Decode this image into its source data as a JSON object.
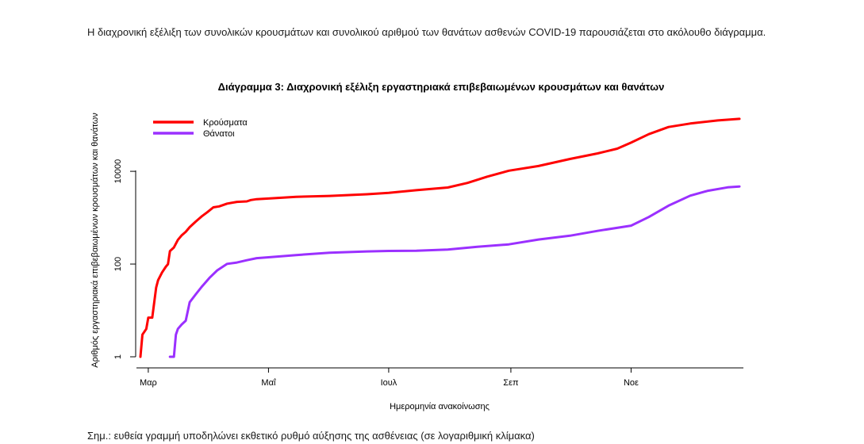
{
  "document": {
    "intro_text": "Η διαχρονική εξέλιξη των συνολικών κρουσμάτων και συνολικού αριθμού των θανάτων ασθενών COVID-19 παρουσιάζεται στο ακόλουθο διάγραμμα.",
    "footnote": "Σημ.: ευθεία γραμμή υποδηλώνει εκθετικό ρυθμό αύξησης της ασθένειας (σε λογαριθμική κλίμακα)"
  },
  "chart_data": {
    "type": "line",
    "title": "Διάγραμμα 3: Διαχρονική εξέλιξη εργαστηριακά επιβεβαιωμένων κρουσμάτων και θανάτων",
    "xlabel": "Ημερομηνία ανακοίνωσης",
    "ylabel": "Αριθμός εργαστηριακά επιβεβαιωμένων κρουσμάτων και θανάτων",
    "y_scale": "log",
    "ylim": [
      1,
      200000
    ],
    "xlim": [
      "2020-02-24",
      "2020-12-28"
    ],
    "x_ticks": [
      {
        "date": "2020-03-01",
        "label": "Μαρ"
      },
      {
        "date": "2020-05-01",
        "label": "Μαΐ"
      },
      {
        "date": "2020-07-01",
        "label": "Ιουλ"
      },
      {
        "date": "2020-09-01",
        "label": "Σεπ"
      },
      {
        "date": "2020-11-01",
        "label": "Νοε"
      }
    ],
    "y_ticks": [
      {
        "value": 1,
        "label": "1"
      },
      {
        "value": 100,
        "label": "100"
      },
      {
        "value": 10000,
        "label": "10000"
      }
    ],
    "legend_position": "top-left",
    "grid": false,
    "series": [
      {
        "name": "Κρούσματα",
        "color": "#ff0000",
        "points": [
          [
            "2020-02-26",
            1
          ],
          [
            "2020-02-27",
            3
          ],
          [
            "2020-02-29",
            4
          ],
          [
            "2020-03-01",
            7
          ],
          [
            "2020-03-03",
            7
          ],
          [
            "2020-03-05",
            31
          ],
          [
            "2020-03-06",
            45
          ],
          [
            "2020-03-08",
            66
          ],
          [
            "2020-03-10",
            89
          ],
          [
            "2020-03-11",
            99
          ],
          [
            "2020-03-12",
            190
          ],
          [
            "2020-03-14",
            228
          ],
          [
            "2020-03-16",
            331
          ],
          [
            "2020-03-18",
            418
          ],
          [
            "2020-03-20",
            495
          ],
          [
            "2020-03-22",
            624
          ],
          [
            "2020-03-25",
            821
          ],
          [
            "2020-03-28",
            1061
          ],
          [
            "2020-03-31",
            1314
          ],
          [
            "2020-04-03",
            1673
          ],
          [
            "2020-04-06",
            1755
          ],
          [
            "2020-04-10",
            2011
          ],
          [
            "2020-04-15",
            2192
          ],
          [
            "2020-04-20",
            2245
          ],
          [
            "2020-04-22",
            2401
          ],
          [
            "2020-04-25",
            2506
          ],
          [
            "2020-05-01",
            2591
          ],
          [
            "2020-05-15",
            2819
          ],
          [
            "2020-06-01",
            2952
          ],
          [
            "2020-06-20",
            3203
          ],
          [
            "2020-07-01",
            3432
          ],
          [
            "2020-07-15",
            3910
          ],
          [
            "2020-07-31",
            4477
          ],
          [
            "2020-08-10",
            5623
          ],
          [
            "2020-08-20",
            7684
          ],
          [
            "2020-08-31",
            10317
          ],
          [
            "2020-09-15",
            13031
          ],
          [
            "2020-10-01",
            18475
          ],
          [
            "2020-10-15",
            24287
          ],
          [
            "2020-10-25",
            30782
          ],
          [
            "2020-11-01",
            41527
          ],
          [
            "2020-11-10",
            63321
          ],
          [
            "2020-11-20",
            90121
          ],
          [
            "2020-12-01",
            107470
          ],
          [
            "2020-12-15",
            125212
          ],
          [
            "2020-12-26",
            135456
          ]
        ]
      },
      {
        "name": "Θάνατοι",
        "color": "#9b30ff",
        "points": [
          [
            "2020-03-12",
            1
          ],
          [
            "2020-03-13",
            1
          ],
          [
            "2020-03-14",
            1
          ],
          [
            "2020-03-15",
            3
          ],
          [
            "2020-03-16",
            4
          ],
          [
            "2020-03-18",
            5
          ],
          [
            "2020-03-20",
            6
          ],
          [
            "2020-03-22",
            15
          ],
          [
            "2020-03-25",
            22
          ],
          [
            "2020-03-28",
            32
          ],
          [
            "2020-04-01",
            50
          ],
          [
            "2020-04-05",
            73
          ],
          [
            "2020-04-10",
            101
          ],
          [
            "2020-04-15",
            108
          ],
          [
            "2020-04-20",
            121
          ],
          [
            "2020-04-25",
            134
          ],
          [
            "2020-05-01",
            140
          ],
          [
            "2020-05-15",
            156
          ],
          [
            "2020-06-01",
            175
          ],
          [
            "2020-06-20",
            187
          ],
          [
            "2020-07-01",
            192
          ],
          [
            "2020-07-15",
            194
          ],
          [
            "2020-07-31",
            206
          ],
          [
            "2020-08-15",
            235
          ],
          [
            "2020-08-31",
            266
          ],
          [
            "2020-09-15",
            338
          ],
          [
            "2020-10-01",
            409
          ],
          [
            "2020-10-15",
            520
          ],
          [
            "2020-11-01",
            673
          ],
          [
            "2020-11-10",
            1035
          ],
          [
            "2020-11-20",
            1815
          ],
          [
            "2020-12-01",
            2987
          ],
          [
            "2020-12-10",
            3808
          ],
          [
            "2020-12-20",
            4506
          ],
          [
            "2020-12-26",
            4713
          ]
        ]
      }
    ]
  }
}
